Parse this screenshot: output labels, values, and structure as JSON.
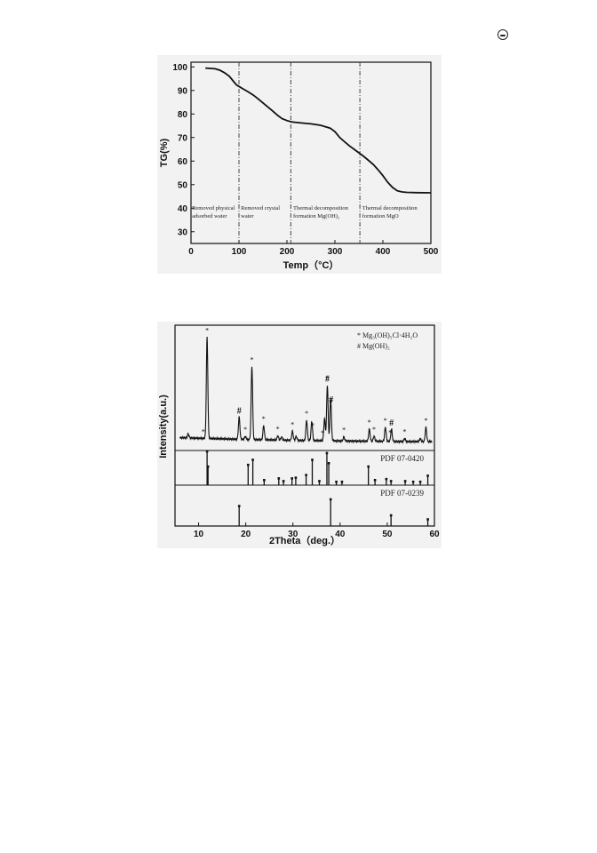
{
  "chart_data": [
    {
      "type": "line",
      "title": "",
      "xlabel": "Temp（°C）",
      "ylabel": "TG(%)",
      "xlim": [
        0,
        500
      ],
      "ylim": [
        25,
        102
      ],
      "xticks": [
        0,
        100,
        200,
        300,
        400,
        500
      ],
      "yticks": [
        30,
        40,
        50,
        60,
        70,
        80,
        90,
        100
      ],
      "grid": false,
      "series": [
        {
          "x": [
            30,
            50,
            60,
            70,
            80,
            90,
            95,
            100,
            110,
            120,
            130,
            140,
            150,
            160,
            170,
            180,
            190,
            200,
            210,
            230,
            250,
            270,
            290,
            300,
            310,
            320,
            330,
            340,
            350,
            360,
            370,
            380,
            390,
            400,
            410,
            420,
            430,
            440,
            450,
            470,
            500
          ],
          "y": [
            99.5,
            99.2,
            98.6,
            97.5,
            96,
            93.5,
            92.3,
            91.7,
            90.5,
            89.3,
            88,
            86.4,
            84.7,
            83,
            81.3,
            79.5,
            78,
            77.2,
            76.6,
            76.2,
            75.8,
            75.2,
            74,
            72.5,
            70,
            68.2,
            66.5,
            65,
            63.5,
            62,
            60.3,
            58.5,
            56.3,
            53.8,
            51,
            48.8,
            47.4,
            46.9,
            46.7,
            46.6,
            46.5
          ]
        }
      ],
      "dividers": [
        100,
        208,
        352
      ],
      "regions": [
        {
          "line1": "Removed physical",
          "line2": "adsorbed water",
          "x": 2
        },
        {
          "line1": "Removed crystal",
          "line2": "water",
          "x": 104
        },
        {
          "line1": "Thermal decomposition",
          "line2": "formation Mg(OH)₂",
          "x": 213
        },
        {
          "line1": "Thermal decomposition",
          "line2": "formation MgO",
          "x": 357
        }
      ]
    },
    {
      "type": "line",
      "title": "",
      "xlabel": "2Theta（deg.）",
      "ylabel": "Intensity(a.u.)",
      "xlim": [
        5,
        60
      ],
      "xticks": [
        10,
        20,
        30,
        40,
        50,
        60
      ],
      "grid": false,
      "legend": [
        "* Mg₃(OH)₅Cl·4H₂O",
        "# Mg(OH)₂"
      ],
      "legend_position": "top-right",
      "pattern": {
        "baseline": 5,
        "peaks": [
          {
            "x": 7.8,
            "h": 4
          },
          {
            "x": 11.8,
            "h": 100
          },
          {
            "x": 18.6,
            "h": 22
          },
          {
            "x": 19.9,
            "h": 3
          },
          {
            "x": 21.3,
            "h": 72
          },
          {
            "x": 23.8,
            "h": 14
          },
          {
            "x": 26.8,
            "h": 4
          },
          {
            "x": 27.6,
            "h": 3
          },
          {
            "x": 29.9,
            "h": 9
          },
          {
            "x": 30.7,
            "h": 4
          },
          {
            "x": 32.9,
            "h": 20
          },
          {
            "x": 34.0,
            "h": 19
          },
          {
            "x": 36.7,
            "h": 22
          },
          {
            "x": 37.3,
            "h": 55
          },
          {
            "x": 38.0,
            "h": 42
          },
          {
            "x": 40.8,
            "h": 4
          },
          {
            "x": 46.2,
            "h": 12
          },
          {
            "x": 47.2,
            "h": 5
          },
          {
            "x": 49.6,
            "h": 14
          },
          {
            "x": 50.9,
            "h": 12
          },
          {
            "x": 53.7,
            "h": 3
          },
          {
            "x": 57.0,
            "h": 3
          },
          {
            "x": 58.2,
            "h": 14
          }
        ]
      },
      "star_markers": [
        11,
        11.8,
        19.9,
        21.3,
        23.8,
        26.8,
        29.9,
        32.9,
        34.2,
        36.3,
        37.3,
        40.8,
        46.2,
        47.2,
        49.6,
        50.6,
        53.7,
        58.2
      ],
      "hash_markers": [
        18.6,
        37.3,
        38.1,
        50.9
      ],
      "references": [
        {
          "name": "PDF 07-0420",
          "sticks": [
            {
              "x": 11.8,
              "h": 100
            },
            {
              "x": 12.0,
              "h": 55
            },
            {
              "x": 20.5,
              "h": 60
            },
            {
              "x": 21.5,
              "h": 75
            },
            {
              "x": 23.9,
              "h": 15
            },
            {
              "x": 27.0,
              "h": 20
            },
            {
              "x": 28.0,
              "h": 12
            },
            {
              "x": 29.8,
              "h": 20
            },
            {
              "x": 30.6,
              "h": 22
            },
            {
              "x": 32.8,
              "h": 30
            },
            {
              "x": 34.1,
              "h": 75
            },
            {
              "x": 35.6,
              "h": 12
            },
            {
              "x": 37.2,
              "h": 95
            },
            {
              "x": 37.6,
              "h": 65
            },
            {
              "x": 39.2,
              "h": 10
            },
            {
              "x": 40.4,
              "h": 10
            },
            {
              "x": 46.0,
              "h": 55
            },
            {
              "x": 47.4,
              "h": 15
            },
            {
              "x": 49.8,
              "h": 18
            },
            {
              "x": 50.8,
              "h": 12
            },
            {
              "x": 53.8,
              "h": 12
            },
            {
              "x": 55.5,
              "h": 10
            },
            {
              "x": 57.0,
              "h": 10
            },
            {
              "x": 58.6,
              "h": 28
            }
          ]
        },
        {
          "name": "PDF 07-0239",
          "sticks": [
            {
              "x": 18.6,
              "h": 75
            },
            {
              "x": 38.0,
              "h": 100
            },
            {
              "x": 50.8,
              "h": 40
            },
            {
              "x": 58.6,
              "h": 25
            }
          ]
        }
      ]
    }
  ]
}
